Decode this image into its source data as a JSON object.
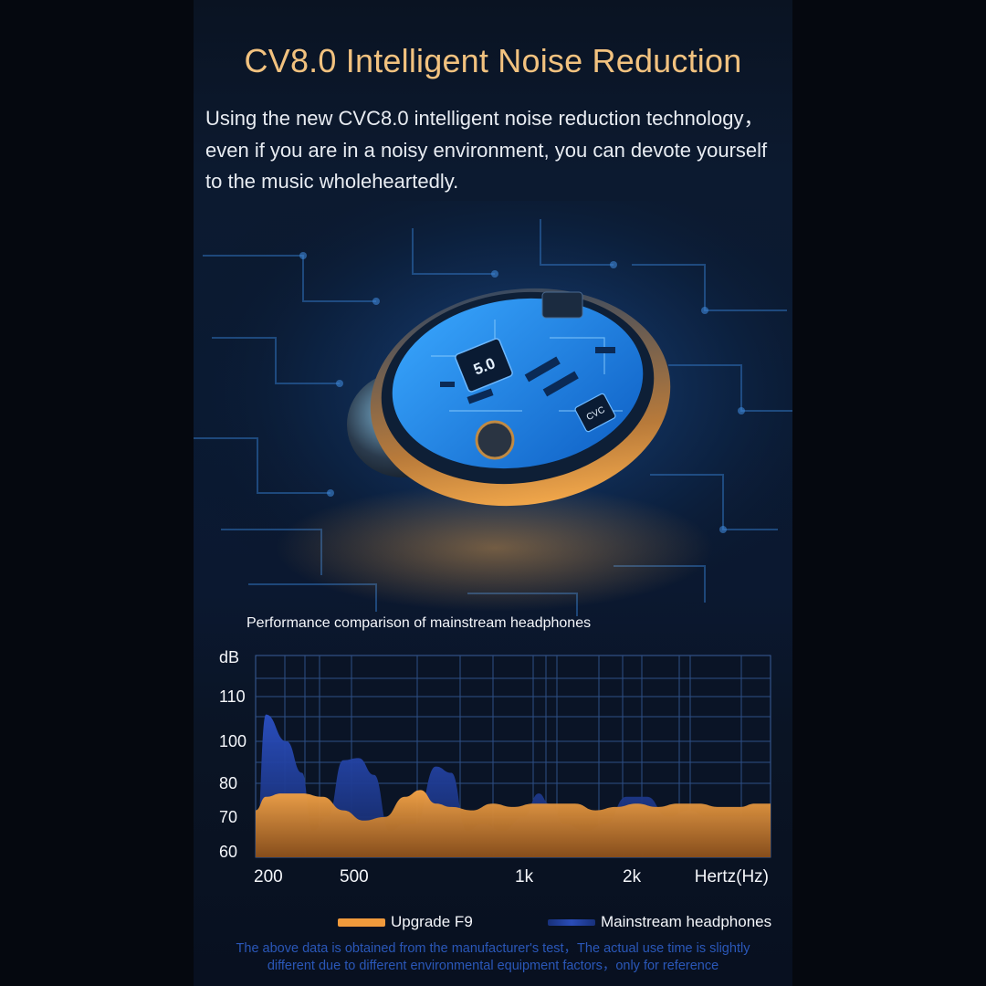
{
  "header": {
    "title": "CV8.0 Intelligent Noise Reduction",
    "description": "Using the new CVC8.0 intelligent noise reduction technology，even if you are in a noisy environment, you can devote yourself to the music wholeheartedly."
  },
  "product": {
    "chip_label": "5.0",
    "chip_small_label": "CVC",
    "colors": {
      "board": "#1a7fe8",
      "shell_glow": "#f0a64a",
      "trace": "#2f78c4"
    }
  },
  "chart_data": {
    "type": "area",
    "title": "Performance comparison of mainstream headphones",
    "xlabel": "Hertz(Hz)",
    "ylabel": "dB",
    "x_ticks": [
      "200",
      "500",
      "1k",
      "2k"
    ],
    "y_ticks": [
      "60",
      "70",
      "80",
      "100",
      "110"
    ],
    "ylim": [
      60,
      120
    ],
    "series": [
      {
        "name": "Mainstream headphones",
        "color": "#2a4db8",
        "x": [
          0,
          0.02,
          0.06,
          0.09,
          0.11,
          0.14,
          0.17,
          0.2,
          0.23,
          0.26,
          0.29,
          0.31,
          0.35,
          0.38,
          0.41,
          0.44,
          0.48,
          0.52,
          0.55,
          0.57,
          0.6,
          0.64,
          0.68,
          0.72,
          0.76,
          0.8,
          0.84,
          0.88,
          0.92,
          0.96,
          1.0
        ],
        "values": [
          60,
          106,
          100,
          85,
          66,
          70,
          91,
          92,
          84,
          66,
          68,
          68,
          88,
          85,
          66,
          68,
          66,
          70,
          77,
          74,
          68,
          66,
          68,
          76,
          76,
          70,
          72,
          70,
          70,
          70,
          70
        ]
      },
      {
        "name": "Upgrade F9",
        "color": "#f09a3c",
        "x": [
          0,
          0.02,
          0.05,
          0.09,
          0.13,
          0.17,
          0.21,
          0.25,
          0.29,
          0.32,
          0.35,
          0.38,
          0.42,
          0.46,
          0.5,
          0.54,
          0.58,
          0.62,
          0.66,
          0.7,
          0.74,
          0.78,
          0.82,
          0.86,
          0.9,
          0.94,
          0.97,
          1.0
        ],
        "values": [
          72,
          76,
          77,
          77,
          76,
          72,
          69,
          70,
          76,
          78,
          74,
          73,
          72,
          74,
          73,
          74,
          74,
          74,
          72,
          73,
          74,
          73,
          74,
          74,
          73,
          73,
          74,
          74
        ]
      }
    ],
    "legend": "bottom",
    "grid": true
  },
  "footnote": {
    "line1": "The above data is obtained from the manufacturer's test，The actual use time is slightly",
    "line2": "different due to different environmental equipment factors，only for reference"
  }
}
